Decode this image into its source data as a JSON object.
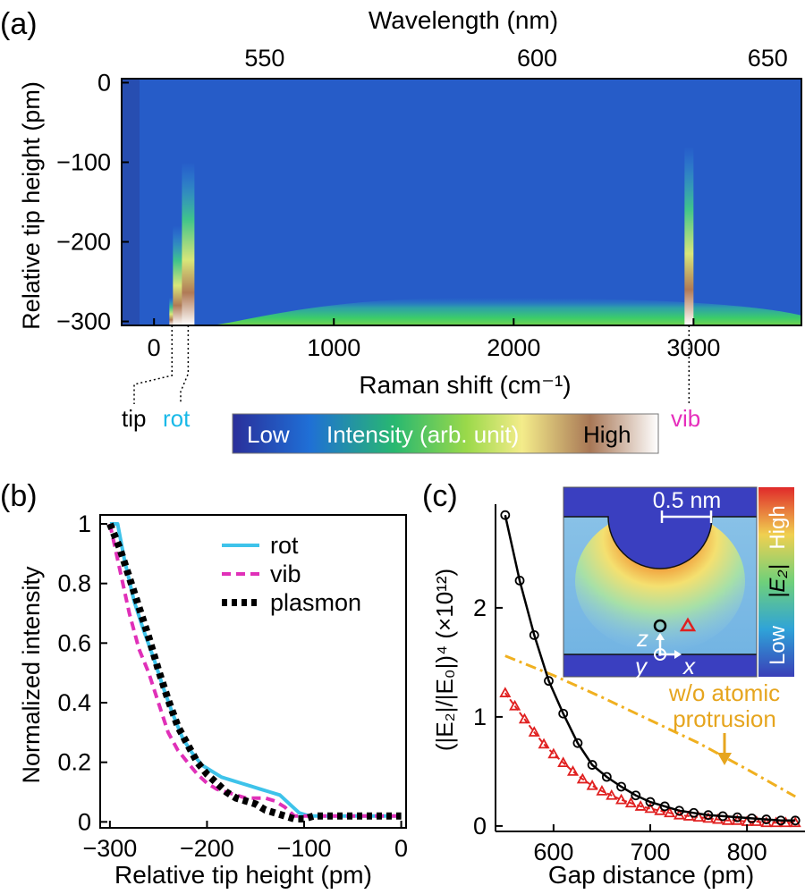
{
  "figure": {
    "panel_a_label": "(a)",
    "panel_b_label": "(b)",
    "panel_c_label": "(c)"
  },
  "chart_data": [
    {
      "panel": "a",
      "type": "heatmap",
      "top_axis_label": "Wavelength (nm)",
      "top_ticks": [
        550,
        600,
        650
      ],
      "xlabel": "Raman shift (cm⁻¹)",
      "xlim": [
        -180,
        3600
      ],
      "xticks": [
        0,
        1000,
        2000,
        3000
      ],
      "ylabel": "Relative tip height  (pm)",
      "ylim": [
        -305,
        5
      ],
      "yticks": [
        0,
        -100,
        -200,
        -300
      ],
      "peak_labels": [
        {
          "text": "tip",
          "raman_shift": 100,
          "color": "#000000"
        },
        {
          "text": "rot",
          "raman_shift": 190,
          "color": "#19b9e8"
        },
        {
          "text": "vib",
          "raman_shift": 2975,
          "color": "#e62ebc"
        }
      ],
      "plasmon_band": {
        "center": 1800,
        "min_height_visible": -270
      },
      "colorbar": {
        "low": "Low",
        "title": "Intensity (arb. unit)",
        "high": "High",
        "colors": [
          "#2a2f9a",
          "#1f6fd6",
          "#28b870",
          "#9bd94a",
          "#f4ec8a",
          "#a87756",
          "#ffffff"
        ]
      }
    },
    {
      "panel": "b",
      "type": "line",
      "xlabel": "Relative tip height (pm)",
      "ylabel": "Normalized intensity",
      "xlim": [
        -310,
        5
      ],
      "ylim": [
        -0.02,
        1.03
      ],
      "xticks": [
        -300,
        -200,
        -100,
        0
      ],
      "yticks": [
        0,
        0.2,
        0.4,
        0.6,
        0.8,
        1
      ],
      "legend": "top-right",
      "series": [
        {
          "name": "rot",
          "color": "#3ec3ea",
          "dash": "solid",
          "x": [
            -300,
            -292,
            -285,
            -275,
            -265,
            -255,
            -245,
            -235,
            -225,
            -215,
            -205,
            -195,
            -185,
            -175,
            -165,
            -155,
            -145,
            -135,
            -125,
            -115,
            -105,
            -95,
            -75,
            -50,
            -25,
            0
          ],
          "y": [
            1.0,
            1.0,
            0.88,
            0.74,
            0.64,
            0.55,
            0.45,
            0.36,
            0.28,
            0.23,
            0.19,
            0.17,
            0.15,
            0.14,
            0.13,
            0.12,
            0.11,
            0.1,
            0.09,
            0.06,
            0.03,
            0.02,
            0.02,
            0.02,
            0.02,
            0.02
          ]
        },
        {
          "name": "vib",
          "color": "#e030b8",
          "dash": "dashed",
          "x": [
            -300,
            -290,
            -280,
            -270,
            -260,
            -250,
            -240,
            -230,
            -220,
            -210,
            -200,
            -190,
            -180,
            -170,
            -160,
            -150,
            -140,
            -130,
            -120,
            -110,
            -100,
            -90,
            -70,
            -50,
            -25,
            0
          ],
          "y": [
            1.0,
            0.85,
            0.7,
            0.58,
            0.5,
            0.4,
            0.3,
            0.24,
            0.2,
            0.16,
            0.13,
            0.11,
            0.1,
            0.09,
            0.08,
            0.08,
            0.08,
            0.07,
            0.05,
            0.02,
            0.02,
            0.02,
            0.02,
            0.02,
            0.02,
            0.02
          ]
        },
        {
          "name": "plasmon",
          "color": "#000000",
          "dash": "dotted",
          "x": [
            -300,
            -290,
            -280,
            -270,
            -260,
            -250,
            -240,
            -230,
            -220,
            -210,
            -200,
            -190,
            -180,
            -170,
            -160,
            -150,
            -140,
            -130,
            -120,
            -110,
            -100,
            -90,
            -70,
            -50,
            -25,
            0
          ],
          "y": [
            1.0,
            0.92,
            0.82,
            0.72,
            0.62,
            0.51,
            0.41,
            0.32,
            0.26,
            0.2,
            0.16,
            0.13,
            0.1,
            0.08,
            0.07,
            0.06,
            0.04,
            0.03,
            0.02,
            0.01,
            0.01,
            0.02,
            0.02,
            0.02,
            0.02,
            0.02
          ]
        }
      ]
    },
    {
      "panel": "c",
      "type": "scatter",
      "xlabel": "Gap distance (pm)",
      "ylabel": "(|E₂|/|E₀|)⁴ (×10¹²)",
      "xlim": [
        540,
        860
      ],
      "ylim": [
        -0.05,
        2.95
      ],
      "xticks": [
        600,
        700,
        800
      ],
      "yticks": [
        0,
        1,
        2
      ],
      "series": [
        {
          "name": "black circles",
          "color": "#000000",
          "marker": "circle",
          "x": [
            550,
            565,
            580,
            595,
            610,
            625,
            640,
            655,
            670,
            685,
            700,
            715,
            730,
            745,
            760,
            775,
            790,
            805,
            820,
            835,
            850
          ],
          "y": [
            2.85,
            2.25,
            1.75,
            1.33,
            1.03,
            0.76,
            0.56,
            0.45,
            0.36,
            0.28,
            0.22,
            0.18,
            0.14,
            0.12,
            0.1,
            0.09,
            0.08,
            0.07,
            0.06,
            0.05,
            0.05
          ]
        },
        {
          "name": "red triangles",
          "color": "#e02020",
          "marker": "triangle",
          "x": [
            550,
            560,
            570,
            580,
            590,
            600,
            610,
            620,
            630,
            640,
            650,
            660,
            670,
            680,
            690,
            700,
            710,
            720,
            730,
            740,
            750,
            760,
            770,
            780,
            790,
            800,
            810,
            820,
            830,
            840,
            850
          ],
          "y": [
            1.22,
            1.1,
            0.98,
            0.86,
            0.75,
            0.66,
            0.58,
            0.5,
            0.43,
            0.37,
            0.32,
            0.28,
            0.24,
            0.21,
            0.18,
            0.16,
            0.14,
            0.12,
            0.1,
            0.09,
            0.08,
            0.07,
            0.06,
            0.05,
            0.05,
            0.04,
            0.04,
            0.03,
            0.03,
            0.03,
            0.03
          ]
        },
        {
          "name": "w/o atomic protrusion",
          "color": "#f0b020",
          "dash": "dashed",
          "x": [
            550,
            600,
            650,
            700,
            750,
            800,
            850
          ],
          "y": [
            1.56,
            1.38,
            1.18,
            0.97,
            0.76,
            0.52,
            0.27
          ]
        }
      ],
      "annotation": {
        "line1": "w/o atomic",
        "line2": "protrusion",
        "color": "#e6a51e"
      },
      "inset": {
        "scalebar": "0.5 nm",
        "colorbar_high": "High",
        "colorbar_quantity": "|E₂|",
        "colorbar_low": "Low",
        "axis_z": "z",
        "axis_y": "y",
        "axis_x": "x"
      }
    }
  ]
}
